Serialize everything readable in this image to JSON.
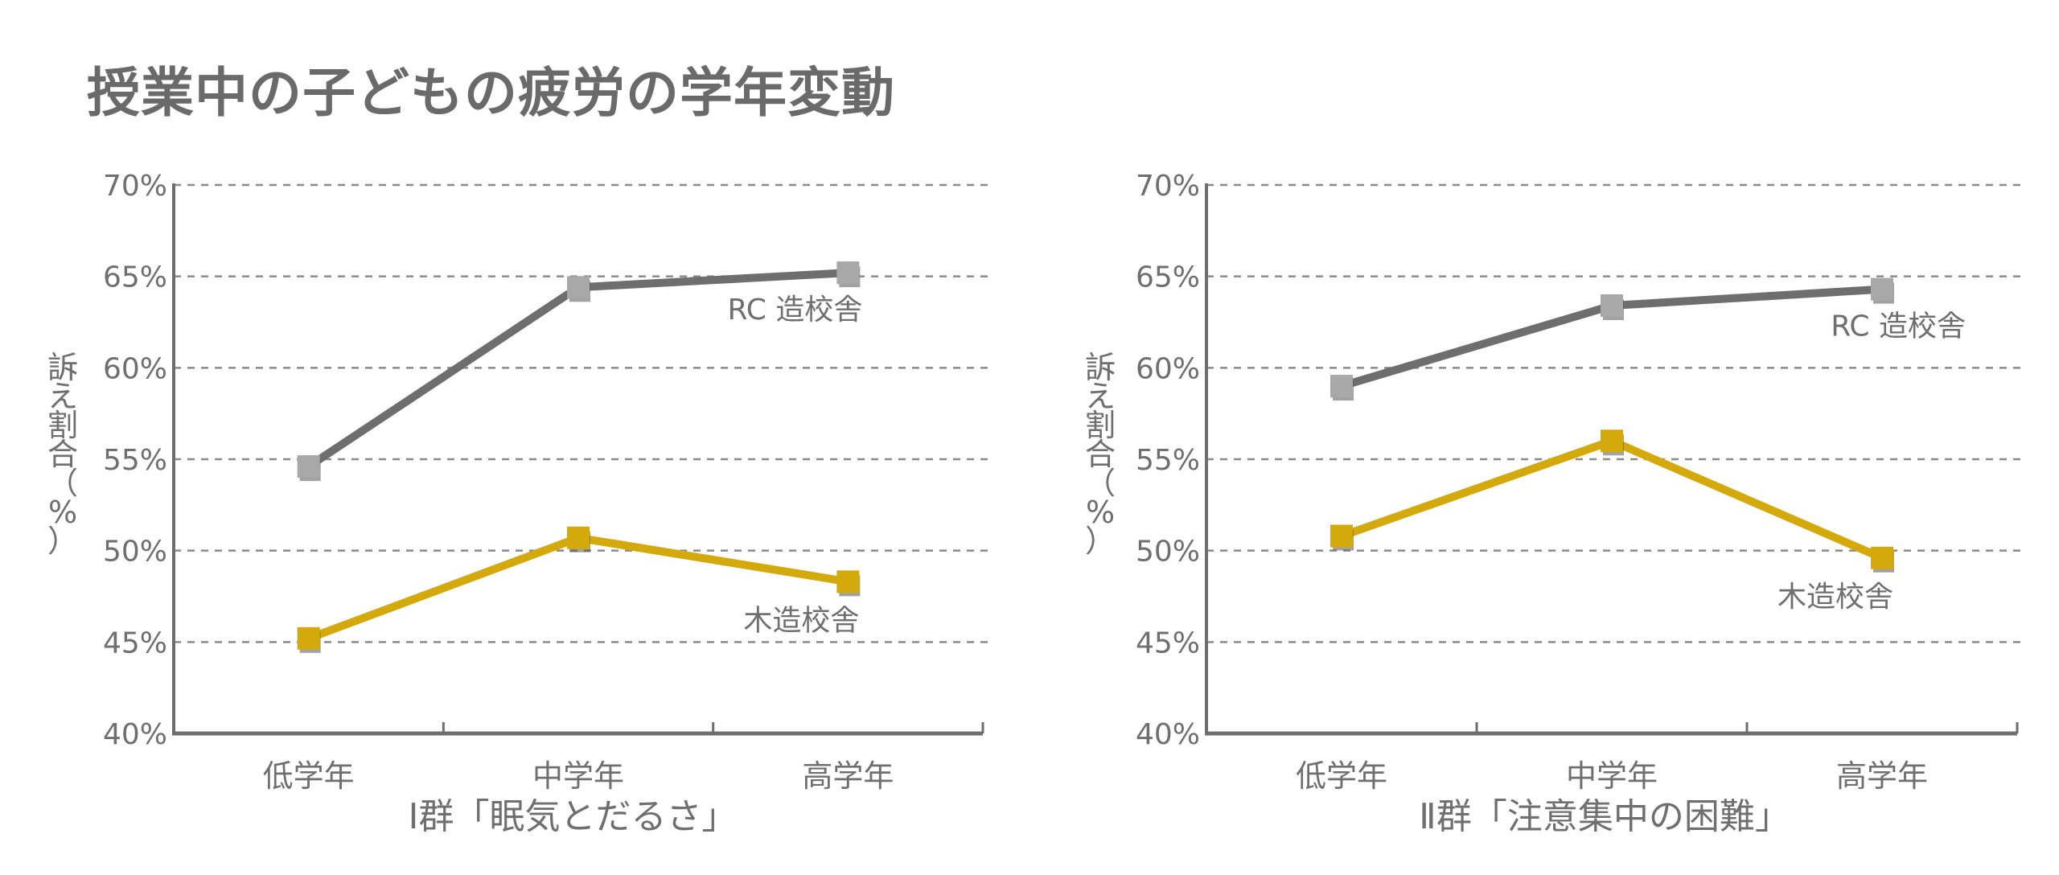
{
  "page": {
    "title": "授業中の子どもの疲労の学年変動"
  },
  "colors": {
    "rc": "#6e6e6e",
    "rc_marker": "#a8a8a8",
    "wood": "#d4a90c",
    "axis": "#6e6e6e",
    "grid": "#8a8a8a"
  },
  "chart_data": [
    {
      "type": "line",
      "title": "",
      "xlabel": "Ⅰ群「眠気とだるさ」",
      "ylabel": "訴え割合（%）",
      "categories": [
        "低学年",
        "中学年",
        "高学年"
      ],
      "ylim": [
        40,
        70
      ],
      "yticks": [
        40,
        45,
        50,
        55,
        60,
        65,
        70
      ],
      "ytick_labels": [
        "40%",
        "45%",
        "50%",
        "55%",
        "60%",
        "65%",
        "70%"
      ],
      "grid": true,
      "series": [
        {
          "name": "RC 造校舎",
          "key": "rc",
          "values": [
            54.6,
            64.4,
            65.2
          ]
        },
        {
          "name": "木造校舎",
          "key": "wood",
          "values": [
            45.2,
            50.7,
            48.3
          ]
        }
      ]
    },
    {
      "type": "line",
      "title": "",
      "xlabel": "Ⅱ群「注意集中の困難」",
      "ylabel": "訴え割合（%）",
      "categories": [
        "低学年",
        "中学年",
        "高学年"
      ],
      "ylim": [
        40,
        70
      ],
      "yticks": [
        40,
        45,
        50,
        55,
        60,
        65,
        70
      ],
      "ytick_labels": [
        "40%",
        "45%",
        "50%",
        "55%",
        "60%",
        "65%",
        "70%"
      ],
      "grid": true,
      "series": [
        {
          "name": "RC 造校舎",
          "key": "rc",
          "values": [
            59.0,
            63.4,
            64.3
          ]
        },
        {
          "name": "木造校舎",
          "key": "wood",
          "values": [
            50.8,
            56.0,
            49.6
          ]
        }
      ]
    }
  ]
}
